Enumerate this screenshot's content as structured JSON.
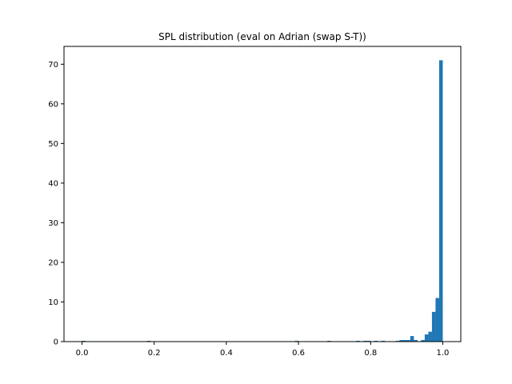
{
  "chart_data": {
    "type": "bar",
    "title": "SPL distribution (eval on Adrian (swap S-T))",
    "xlabel": "",
    "ylabel": "",
    "xlim": [
      -0.05,
      1.05
    ],
    "ylim": [
      0,
      74.5
    ],
    "xticks": [
      0.0,
      0.2,
      0.4,
      0.6,
      0.8,
      1.0
    ],
    "xtick_labels": [
      "0.0",
      "0.2",
      "0.4",
      "0.6",
      "0.8",
      "1.0"
    ],
    "yticks": [
      0,
      10,
      20,
      30,
      40,
      50,
      60,
      70
    ],
    "ytick_labels": [
      "0",
      "10",
      "20",
      "30",
      "40",
      "50",
      "60",
      "70"
    ],
    "bin_width": 0.01,
    "bins": [
      {
        "x": 0.0,
        "count": 0.2
      },
      {
        "x": 0.18,
        "count": 0.2
      },
      {
        "x": 0.59,
        "count": 0.2
      },
      {
        "x": 0.68,
        "count": 0.2
      },
      {
        "x": 0.76,
        "count": 0.2
      },
      {
        "x": 0.78,
        "count": 0.2
      },
      {
        "x": 0.79,
        "count": 0.2
      },
      {
        "x": 0.81,
        "count": 0.2
      },
      {
        "x": 0.83,
        "count": 0.2
      },
      {
        "x": 0.87,
        "count": 0.2
      },
      {
        "x": 0.88,
        "count": 0.4
      },
      {
        "x": 0.89,
        "count": 0.4
      },
      {
        "x": 0.9,
        "count": 0.4
      },
      {
        "x": 0.91,
        "count": 1.4
      },
      {
        "x": 0.92,
        "count": 0.4
      },
      {
        "x": 0.94,
        "count": 0.4
      },
      {
        "x": 0.95,
        "count": 1.8
      },
      {
        "x": 0.96,
        "count": 2.5
      },
      {
        "x": 0.97,
        "count": 7.5
      },
      {
        "x": 0.98,
        "count": 11.0
      },
      {
        "x": 0.99,
        "count": 71.0
      }
    ],
    "bar_color": "#1f77b4",
    "grid": false
  }
}
